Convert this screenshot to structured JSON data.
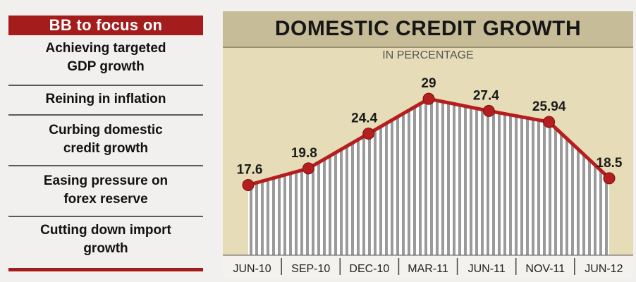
{
  "focus": {
    "header": "BB to focus on",
    "items": [
      {
        "line1": "Achieving targeted",
        "line2": "GDP growth"
      },
      {
        "line1": "Reining in inflation",
        "line2": ""
      },
      {
        "line1": "Curbing domestic",
        "line2": "credit growth"
      },
      {
        "line1": "Easing pressure on",
        "line2": "forex reserve"
      },
      {
        "line1": "Cutting down import",
        "line2": "growth"
      }
    ]
  },
  "colors": {
    "accent": "#a41c1c",
    "title_bg": "#c6bc98",
    "plot_bg": "#e6dcb7",
    "line": "#b41e1e",
    "stripe": "#9a9a9a"
  },
  "chart_data": {
    "type": "line",
    "title": "DOMESTIC CREDIT GROWTH",
    "ylabel": "IN PERCENTAGE",
    "categories": [
      "JUN-10",
      "SEP-10",
      "DEC-10",
      "MAR-11",
      "JUN-11",
      "NOV-11",
      "JUN-12"
    ],
    "values": [
      17.6,
      19.8,
      24.4,
      29,
      27.4,
      25.94,
      18.5
    ],
    "value_labels": [
      "17.6",
      "19.8",
      "24.4",
      "29",
      "27.4",
      "25.94",
      "18.5"
    ],
    "grid": false,
    "legend": "none"
  }
}
